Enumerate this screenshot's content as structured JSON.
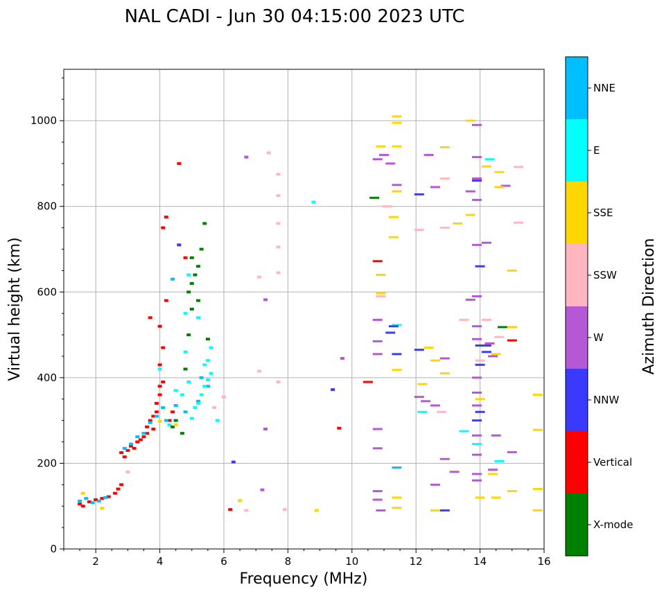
{
  "chart_data": {
    "type": "scatter",
    "title": "NAL CADI - Jun 30 04:15:00 2023 UTC",
    "xlabel": "Frequency (MHz)",
    "ylabel": "Virtual height (km)",
    "xlim": [
      1,
      16
    ],
    "ylim": [
      0,
      1120
    ],
    "x_ticks": [
      2,
      4,
      6,
      8,
      10,
      12,
      14,
      16
    ],
    "y_ticks": [
      0,
      200,
      400,
      600,
      800,
      1000
    ],
    "grid": true,
    "colorbar": {
      "label": "Azimuth Direction",
      "categories": [
        {
          "name": "X-mode",
          "color": "#008000"
        },
        {
          "name": "Vertical",
          "color": "#ff0000"
        },
        {
          "name": "NNW",
          "color": "#3a3aff"
        },
        {
          "name": "W",
          "color": "#b558d6"
        },
        {
          "name": "SSW",
          "color": "#ffb6c1"
        },
        {
          "name": "SSE",
          "color": "#ffd700"
        },
        {
          "name": "E",
          "color": "#00ffff"
        },
        {
          "name": "NNE",
          "color": "#00bfff"
        }
      ]
    },
    "series": [
      {
        "name": "Vertical",
        "points": [
          [
            1.5,
            105
          ],
          [
            1.6,
            100
          ],
          [
            1.8,
            110
          ],
          [
            2.0,
            115
          ],
          [
            2.2,
            118
          ],
          [
            2.4,
            122
          ],
          [
            2.6,
            130
          ],
          [
            2.7,
            140
          ],
          [
            2.8,
            150
          ],
          [
            2.8,
            225
          ],
          [
            2.9,
            215
          ],
          [
            3.0,
            230
          ],
          [
            3.1,
            240
          ],
          [
            3.2,
            235
          ],
          [
            3.3,
            250
          ],
          [
            3.4,
            255
          ],
          [
            3.5,
            262
          ],
          [
            3.6,
            270
          ],
          [
            3.6,
            285
          ],
          [
            3.7,
            300
          ],
          [
            3.8,
            310
          ],
          [
            3.8,
            280
          ],
          [
            3.9,
            320
          ],
          [
            3.9,
            340
          ],
          [
            4.0,
            360
          ],
          [
            4.0,
            380
          ],
          [
            4.1,
            390
          ],
          [
            4.0,
            430
          ],
          [
            4.1,
            470
          ],
          [
            4.0,
            520
          ],
          [
            3.7,
            540
          ],
          [
            4.2,
            580
          ],
          [
            4.2,
            775
          ],
          [
            4.1,
            750
          ],
          [
            4.6,
            900
          ],
          [
            4.4,
            320
          ],
          [
            4.3,
            300
          ],
          [
            4.8,
            680
          ],
          [
            10.8,
            672
          ],
          [
            10.5,
            390
          ],
          [
            9.6,
            282
          ],
          [
            6.2,
            92
          ],
          [
            15.0,
            487
          ]
        ]
      },
      {
        "name": "NNE",
        "points": [
          [
            1.5,
            112
          ],
          [
            1.7,
            118
          ],
          [
            1.9,
            108
          ],
          [
            2.1,
            112
          ],
          [
            2.3,
            120
          ],
          [
            2.9,
            235
          ],
          [
            3.1,
            245
          ],
          [
            3.3,
            262
          ],
          [
            3.5,
            270
          ],
          [
            3.7,
            295
          ],
          [
            3.9,
            310
          ],
          [
            4.1,
            330
          ],
          [
            4.2,
            300
          ],
          [
            4.5,
            335
          ],
          [
            4.8,
            320
          ],
          [
            5.2,
            345
          ],
          [
            5.5,
            380
          ],
          [
            5.3,
            400
          ],
          [
            4.4,
            630
          ],
          [
            11.4,
            190
          ]
        ]
      },
      {
        "name": "E",
        "points": [
          [
            5.0,
            305
          ],
          [
            5.1,
            330
          ],
          [
            5.2,
            340
          ],
          [
            5.3,
            360
          ],
          [
            5.4,
            380
          ],
          [
            5.5,
            395
          ],
          [
            5.6,
            410
          ],
          [
            5.4,
            430
          ],
          [
            5.5,
            440
          ],
          [
            5.6,
            470
          ],
          [
            4.7,
            360
          ],
          [
            4.9,
            390
          ],
          [
            4.8,
            460
          ],
          [
            4.5,
            370
          ],
          [
            4.3,
            290
          ],
          [
            4.8,
            550
          ],
          [
            5.2,
            540
          ],
          [
            5.8,
            300
          ],
          [
            4.9,
            640
          ],
          [
            4.0,
            420
          ],
          [
            8.8,
            810
          ],
          [
            11.4,
            523
          ],
          [
            12.2,
            320
          ],
          [
            13.9,
            245
          ],
          [
            14.6,
            205
          ],
          [
            14.3,
            910
          ],
          [
            13.5,
            275
          ]
        ]
      },
      {
        "name": "X-mode",
        "points": [
          [
            4.9,
            600
          ],
          [
            5.0,
            620
          ],
          [
            5.1,
            640
          ],
          [
            5.2,
            660
          ],
          [
            5.3,
            700
          ],
          [
            5.4,
            760
          ],
          [
            5.0,
            680
          ],
          [
            5.2,
            580
          ],
          [
            4.9,
            500
          ],
          [
            4.8,
            420
          ],
          [
            4.5,
            300
          ],
          [
            4.4,
            285
          ],
          [
            4.7,
            270
          ],
          [
            5.0,
            560
          ],
          [
            10.7,
            820
          ],
          [
            14.7,
            518
          ],
          [
            15.0,
            518
          ],
          [
            5.5,
            490
          ]
        ]
      },
      {
        "name": "NNW",
        "points": [
          [
            14.0,
            475
          ],
          [
            14.2,
            460
          ],
          [
            14.0,
            430
          ],
          [
            13.9,
            300
          ],
          [
            14.0,
            320
          ],
          [
            12.1,
            465
          ],
          [
            11.2,
            505
          ],
          [
            11.3,
            520
          ],
          [
            11.4,
            455
          ],
          [
            9.4,
            372
          ],
          [
            6.3,
            203
          ],
          [
            12.9,
            90
          ],
          [
            4.6,
            710
          ],
          [
            14.0,
            660
          ],
          [
            14.2,
            475
          ],
          [
            13.9,
            860
          ],
          [
            12.1,
            828
          ]
        ]
      },
      {
        "name": "W",
        "points": [
          [
            11.0,
            920
          ],
          [
            11.2,
            900
          ],
          [
            11.4,
            850
          ],
          [
            10.8,
            910
          ],
          [
            10.8,
            535
          ],
          [
            10.8,
            485
          ],
          [
            10.8,
            455
          ],
          [
            10.8,
            280
          ],
          [
            10.8,
            235
          ],
          [
            10.8,
            135
          ],
          [
            10.8,
            115
          ],
          [
            10.9,
            90
          ],
          [
            12.1,
            355
          ],
          [
            12.3,
            345
          ],
          [
            12.6,
            335
          ],
          [
            12.9,
            445
          ],
          [
            13.2,
            180
          ],
          [
            12.9,
            210
          ],
          [
            12.6,
            150
          ],
          [
            13.9,
            990
          ],
          [
            13.9,
            915
          ],
          [
            13.9,
            865
          ],
          [
            13.9,
            815
          ],
          [
            13.9,
            710
          ],
          [
            13.9,
            590
          ],
          [
            13.9,
            520
          ],
          [
            13.9,
            490
          ],
          [
            13.9,
            400
          ],
          [
            13.9,
            365
          ],
          [
            13.9,
            335
          ],
          [
            13.9,
            265
          ],
          [
            13.9,
            220
          ],
          [
            13.9,
            175
          ],
          [
            13.9,
            160
          ],
          [
            14.3,
            480
          ],
          [
            14.4,
            450
          ],
          [
            14.5,
            265
          ],
          [
            14.4,
            185
          ],
          [
            14.2,
            715
          ],
          [
            14.8,
            848
          ],
          [
            15.0,
            226
          ],
          [
            13.7,
            582
          ],
          [
            13.7,
            835
          ],
          [
            7.3,
            582
          ],
          [
            7.3,
            280
          ],
          [
            7.2,
            138
          ],
          [
            9.7,
            445
          ],
          [
            6.7,
            915
          ],
          [
            12.4,
            920
          ],
          [
            12.6,
            845
          ]
        ]
      },
      {
        "name": "SSW",
        "points": [
          [
            7.4,
            925
          ],
          [
            7.7,
            875
          ],
          [
            7.7,
            825
          ],
          [
            7.7,
            760
          ],
          [
            7.7,
            705
          ],
          [
            7.7,
            645
          ],
          [
            7.1,
            635
          ],
          [
            7.1,
            415
          ],
          [
            7.7,
            390
          ],
          [
            7.9,
            92
          ],
          [
            6.7,
            90
          ],
          [
            12.1,
            745
          ],
          [
            12.9,
            750
          ],
          [
            12.9,
            865
          ],
          [
            12.8,
            320
          ],
          [
            13.5,
            535
          ],
          [
            14.2,
            535
          ],
          [
            14.6,
            495
          ],
          [
            15.2,
            892
          ],
          [
            15.2,
            762
          ],
          [
            14.0,
            440
          ],
          [
            11.1,
            800
          ],
          [
            6.0,
            355
          ],
          [
            3.0,
            180
          ],
          [
            5.7,
            330
          ],
          [
            10.9,
            590
          ]
        ]
      },
      {
        "name": "SSE",
        "points": [
          [
            11.4,
            1010
          ],
          [
            11.4,
            995
          ],
          [
            11.4,
            940
          ],
          [
            11.3,
            775
          ],
          [
            11.3,
            728
          ],
          [
            10.9,
            940
          ],
          [
            10.9,
            640
          ],
          [
            10.9,
            597
          ],
          [
            11.4,
            418
          ],
          [
            11.4,
            835
          ],
          [
            11.4,
            120
          ],
          [
            11.4,
            96
          ],
          [
            12.2,
            385
          ],
          [
            12.4,
            470
          ],
          [
            12.6,
            440
          ],
          [
            12.9,
            410
          ],
          [
            12.9,
            938
          ],
          [
            13.3,
            760
          ],
          [
            13.7,
            780
          ],
          [
            13.7,
            1000
          ],
          [
            14.0,
            120
          ],
          [
            14.0,
            350
          ],
          [
            14.2,
            893
          ],
          [
            14.4,
            175
          ],
          [
            14.5,
            120
          ],
          [
            14.5,
            455
          ],
          [
            14.6,
            880
          ],
          [
            14.6,
            845
          ],
          [
            15.0,
            650
          ],
          [
            15.0,
            518
          ],
          [
            15.0,
            135
          ],
          [
            15.8,
            360
          ],
          [
            15.8,
            278
          ],
          [
            15.8,
            140
          ],
          [
            15.8,
            90
          ],
          [
            12.6,
            90
          ],
          [
            8.9,
            90
          ],
          [
            6.5,
            113
          ],
          [
            1.6,
            130
          ],
          [
            2.2,
            95
          ],
          [
            4.0,
            298
          ],
          [
            4.5,
            290
          ]
        ]
      }
    ]
  }
}
